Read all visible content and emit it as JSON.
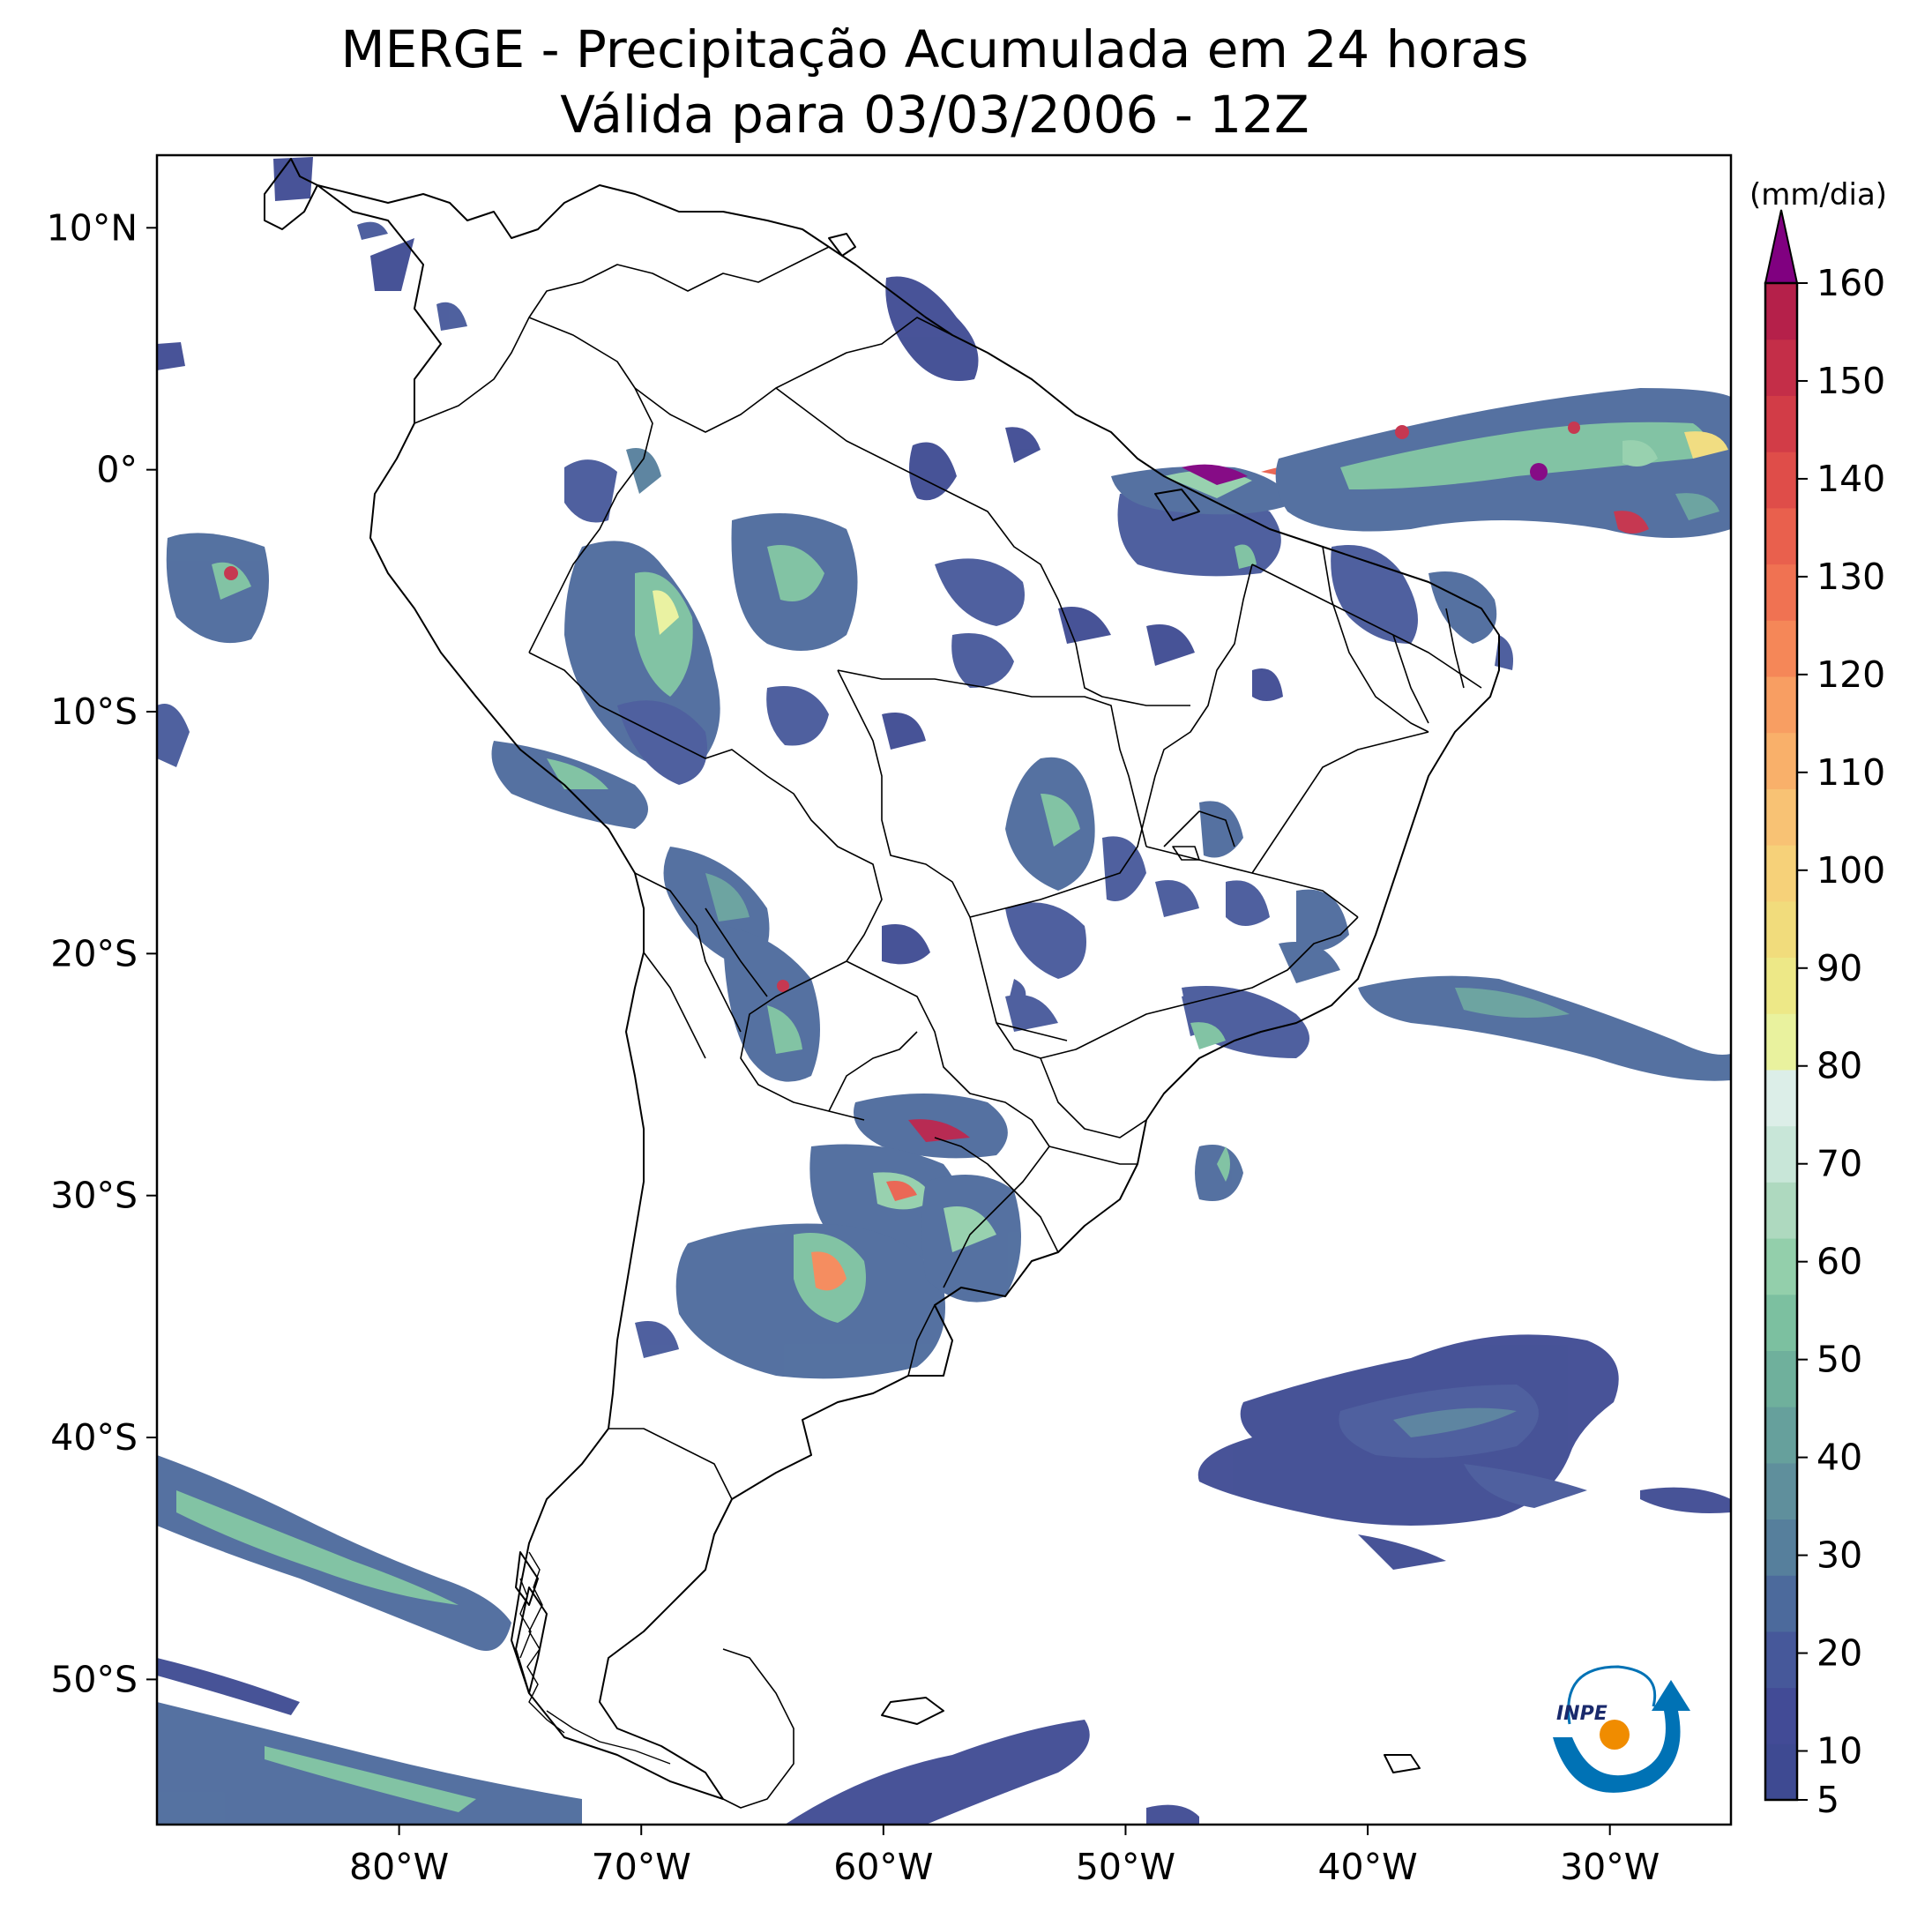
{
  "title": {
    "line1": "MERGE - Precipitação Acumulada em 24 horas",
    "line2": "Válida para 03/03/2006 - 12Z"
  },
  "map": {
    "lon_range": [
      -90,
      -25
    ],
    "lat_range": [
      -56,
      13
    ],
    "lon_ticks": [
      {
        "value": -80,
        "label": "80°W"
      },
      {
        "value": -70,
        "label": "70°W"
      },
      {
        "value": -60,
        "label": "60°W"
      },
      {
        "value": -50,
        "label": "50°W"
      },
      {
        "value": -40,
        "label": "40°W"
      },
      {
        "value": -30,
        "label": "30°W"
      }
    ],
    "lat_ticks": [
      {
        "value": 10,
        "label": "10°N"
      },
      {
        "value": 0,
        "label": "0°"
      },
      {
        "value": -10,
        "label": "10°S"
      },
      {
        "value": -20,
        "label": "20°S"
      },
      {
        "value": -30,
        "label": "30°S"
      },
      {
        "value": -40,
        "label": "40°S"
      },
      {
        "value": -50,
        "label": "50°S"
      }
    ]
  },
  "colorbar": {
    "unit_label": "(mm/dia)",
    "min": 5,
    "max": 160,
    "ticks": [
      5,
      10,
      20,
      30,
      40,
      50,
      60,
      70,
      80,
      90,
      100,
      110,
      120,
      130,
      140,
      150,
      160
    ],
    "colors": [
      "#3e4a92",
      "#424b96",
      "#46589a",
      "#4c6a9c",
      "#567f9c",
      "#5f8f9c",
      "#66a09c",
      "#6fb09c",
      "#7cc0a0",
      "#93cfab",
      "#aed9bf",
      "#c8e6d8",
      "#dceee8",
      "#e9f29e",
      "#ede887",
      "#f1dc7c",
      "#f6d179",
      "#f8c274",
      "#f9b06a",
      "#f89e62",
      "#f58758",
      "#f07252",
      "#e9604d",
      "#df4d49",
      "#d23c47",
      "#c42e48",
      "#b5204a"
    ],
    "extend_color": "#800080"
  },
  "logo": {
    "text": "INPE"
  }
}
